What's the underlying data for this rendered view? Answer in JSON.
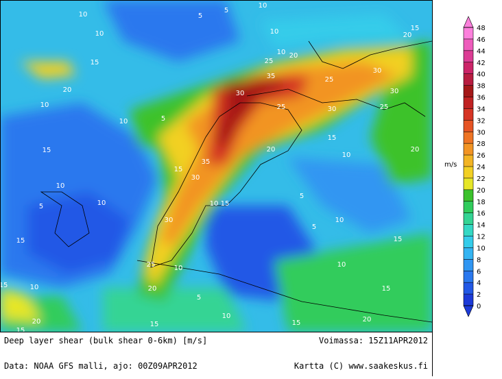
{
  "caption": "Deep layer shear (bulk shear 0-6km) [m/s]",
  "valid_time": "Voimassa: 15Z11APR2012",
  "data_source": "Data: NOAA GFS malli, ajo: 00Z09APR2012",
  "credit": "Kartta (C) www.saakeskus.fi",
  "colorbar": {
    "unit": "m/s",
    "ticks": [
      0,
      2,
      4,
      6,
      8,
      10,
      12,
      14,
      16,
      18,
      20,
      22,
      24,
      26,
      28,
      30,
      32,
      34,
      36,
      38,
      40,
      42,
      44,
      46,
      48
    ],
    "colors": [
      "#1c3ad8",
      "#2258e6",
      "#2a78ee",
      "#3096f2",
      "#34b4f2",
      "#34ccea",
      "#34d8c4",
      "#34d494",
      "#30cc5c",
      "#3cc22c",
      "#e6e628",
      "#f2d024",
      "#f2b424",
      "#f29424",
      "#ee7424",
      "#e65424",
      "#d63424",
      "#c02222",
      "#a41818",
      "#b81c40",
      "#cc2468",
      "#dc3c94",
      "#ee5cbc",
      "#fc80dc"
    ]
  },
  "contour_labels": [
    5,
    10,
    5,
    10,
    10,
    15,
    10,
    10,
    20,
    25,
    35,
    30,
    25,
    30,
    30,
    25,
    30,
    25,
    20,
    15,
    10,
    20,
    30,
    35,
    15,
    10,
    15,
    30,
    25,
    20,
    10,
    15,
    10,
    5,
    10,
    15,
    10,
    5,
    20,
    10,
    15,
    10,
    5,
    5,
    15,
    10,
    5,
    10,
    15,
    20,
    15,
    10,
    15,
    20,
    15,
    20,
    15
  ]
}
